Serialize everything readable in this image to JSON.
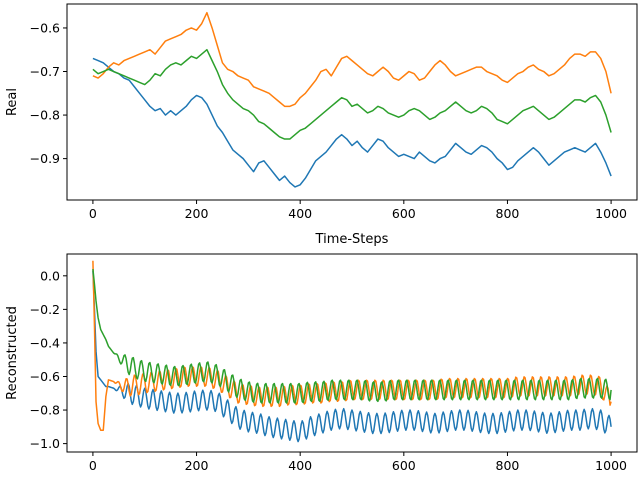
{
  "chart_data": [
    {
      "type": "line",
      "title": "",
      "xlabel": "Time-Steps",
      "ylabel": "Real",
      "xlim": [
        -50,
        1050
      ],
      "ylim": [
        -0.995,
        -0.545
      ],
      "xticks": [
        0,
        200,
        400,
        600,
        800,
        1000
      ],
      "xtick_labels": [
        "0",
        "200",
        "400",
        "600",
        "800",
        "1000"
      ],
      "yticks": [
        -0.9,
        -0.8,
        -0.7,
        -0.6
      ],
      "ytick_labels": [
        "−0.9",
        "−0.8",
        "−0.7",
        "−0.6"
      ],
      "grid": false,
      "series": [
        {
          "color": "#1f77b4",
          "x": [
            0,
            10,
            20,
            30,
            40,
            50,
            60,
            70,
            80,
            90,
            100,
            110,
            120,
            130,
            140,
            150,
            160,
            170,
            180,
            190,
            200,
            210,
            220,
            230,
            240,
            250,
            260,
            270,
            280,
            290,
            300,
            310,
            320,
            330,
            340,
            350,
            360,
            370,
            380,
            390,
            400,
            410,
            420,
            430,
            440,
            450,
            460,
            470,
            480,
            490,
            500,
            510,
            520,
            530,
            540,
            550,
            560,
            570,
            580,
            590,
            600,
            610,
            620,
            630,
            640,
            650,
            660,
            670,
            680,
            690,
            700,
            710,
            720,
            730,
            740,
            750,
            760,
            770,
            780,
            790,
            800,
            810,
            820,
            830,
            840,
            850,
            860,
            870,
            880,
            890,
            900,
            910,
            920,
            930,
            940,
            950,
            960,
            970,
            980,
            990,
            1000
          ],
          "y": [
            -0.67,
            -0.675,
            -0.68,
            -0.69,
            -0.7,
            -0.705,
            -0.715,
            -0.72,
            -0.735,
            -0.75,
            -0.765,
            -0.78,
            -0.79,
            -0.785,
            -0.8,
            -0.79,
            -0.8,
            -0.79,
            -0.78,
            -0.765,
            -0.755,
            -0.76,
            -0.775,
            -0.8,
            -0.825,
            -0.84,
            -0.86,
            -0.88,
            -0.89,
            -0.9,
            -0.915,
            -0.93,
            -0.91,
            -0.905,
            -0.92,
            -0.935,
            -0.95,
            -0.94,
            -0.955,
            -0.965,
            -0.96,
            -0.945,
            -0.925,
            -0.905,
            -0.895,
            -0.885,
            -0.87,
            -0.855,
            -0.845,
            -0.855,
            -0.87,
            -0.86,
            -0.875,
            -0.885,
            -0.87,
            -0.855,
            -0.86,
            -0.875,
            -0.885,
            -0.895,
            -0.89,
            -0.895,
            -0.9,
            -0.885,
            -0.895,
            -0.905,
            -0.91,
            -0.9,
            -0.895,
            -0.88,
            -0.865,
            -0.875,
            -0.885,
            -0.89,
            -0.88,
            -0.87,
            -0.875,
            -0.885,
            -0.9,
            -0.91,
            -0.925,
            -0.92,
            -0.905,
            -0.895,
            -0.885,
            -0.875,
            -0.885,
            -0.9,
            -0.915,
            -0.905,
            -0.895,
            -0.885,
            -0.88,
            -0.875,
            -0.88,
            -0.885,
            -0.875,
            -0.865,
            -0.885,
            -0.91,
            -0.94
          ]
        },
        {
          "color": "#ff7f0e",
          "x": [
            0,
            10,
            20,
            30,
            40,
            50,
            60,
            70,
            80,
            90,
            100,
            110,
            120,
            130,
            140,
            150,
            160,
            170,
            180,
            190,
            200,
            210,
            220,
            230,
            240,
            250,
            260,
            270,
            280,
            290,
            300,
            310,
            320,
            330,
            340,
            350,
            360,
            370,
            380,
            390,
            400,
            410,
            420,
            430,
            440,
            450,
            460,
            470,
            480,
            490,
            500,
            510,
            520,
            530,
            540,
            550,
            560,
            570,
            580,
            590,
            600,
            610,
            620,
            630,
            640,
            650,
            660,
            670,
            680,
            690,
            700,
            710,
            720,
            730,
            740,
            750,
            760,
            770,
            780,
            790,
            800,
            810,
            820,
            830,
            840,
            850,
            860,
            870,
            880,
            890,
            900,
            910,
            920,
            930,
            940,
            950,
            960,
            970,
            980,
            990,
            1000
          ],
          "y": [
            -0.71,
            -0.715,
            -0.705,
            -0.69,
            -0.68,
            -0.685,
            -0.675,
            -0.67,
            -0.665,
            -0.66,
            -0.655,
            -0.65,
            -0.66,
            -0.645,
            -0.63,
            -0.625,
            -0.62,
            -0.615,
            -0.605,
            -0.6,
            -0.605,
            -0.59,
            -0.565,
            -0.6,
            -0.64,
            -0.68,
            -0.695,
            -0.7,
            -0.71,
            -0.715,
            -0.72,
            -0.735,
            -0.74,
            -0.745,
            -0.75,
            -0.76,
            -0.77,
            -0.78,
            -0.78,
            -0.775,
            -0.76,
            -0.75,
            -0.735,
            -0.72,
            -0.7,
            -0.695,
            -0.71,
            -0.69,
            -0.67,
            -0.665,
            -0.675,
            -0.685,
            -0.695,
            -0.705,
            -0.71,
            -0.7,
            -0.69,
            -0.7,
            -0.715,
            -0.72,
            -0.71,
            -0.7,
            -0.705,
            -0.72,
            -0.715,
            -0.7,
            -0.685,
            -0.675,
            -0.685,
            -0.7,
            -0.71,
            -0.705,
            -0.7,
            -0.695,
            -0.69,
            -0.69,
            -0.7,
            -0.705,
            -0.71,
            -0.72,
            -0.725,
            -0.715,
            -0.705,
            -0.7,
            -0.69,
            -0.685,
            -0.695,
            -0.7,
            -0.71,
            -0.705,
            -0.695,
            -0.685,
            -0.67,
            -0.66,
            -0.66,
            -0.665,
            -0.655,
            -0.655,
            -0.67,
            -0.7,
            -0.75
          ]
        },
        {
          "color": "#2ca02c",
          "x": [
            0,
            10,
            20,
            30,
            40,
            50,
            60,
            70,
            80,
            90,
            100,
            110,
            120,
            130,
            140,
            150,
            160,
            170,
            180,
            190,
            200,
            210,
            220,
            230,
            240,
            250,
            260,
            270,
            280,
            290,
            300,
            310,
            320,
            330,
            340,
            350,
            360,
            370,
            380,
            390,
            400,
            410,
            420,
            430,
            440,
            450,
            460,
            470,
            480,
            490,
            500,
            510,
            520,
            530,
            540,
            550,
            560,
            570,
            580,
            590,
            600,
            610,
            620,
            630,
            640,
            650,
            660,
            670,
            680,
            690,
            700,
            710,
            720,
            730,
            740,
            750,
            760,
            770,
            780,
            790,
            800,
            810,
            820,
            830,
            840,
            850,
            860,
            870,
            880,
            890,
            900,
            910,
            920,
            930,
            940,
            950,
            960,
            970,
            980,
            990,
            1000
          ],
          "y": [
            -0.695,
            -0.705,
            -0.7,
            -0.695,
            -0.7,
            -0.705,
            -0.71,
            -0.715,
            -0.72,
            -0.725,
            -0.73,
            -0.72,
            -0.705,
            -0.71,
            -0.695,
            -0.685,
            -0.68,
            -0.685,
            -0.675,
            -0.665,
            -0.67,
            -0.66,
            -0.65,
            -0.675,
            -0.7,
            -0.73,
            -0.75,
            -0.765,
            -0.775,
            -0.785,
            -0.79,
            -0.8,
            -0.815,
            -0.82,
            -0.83,
            -0.84,
            -0.85,
            -0.855,
            -0.855,
            -0.845,
            -0.835,
            -0.83,
            -0.82,
            -0.81,
            -0.8,
            -0.79,
            -0.78,
            -0.77,
            -0.76,
            -0.765,
            -0.78,
            -0.775,
            -0.785,
            -0.795,
            -0.79,
            -0.78,
            -0.785,
            -0.795,
            -0.8,
            -0.805,
            -0.8,
            -0.79,
            -0.785,
            -0.79,
            -0.8,
            -0.81,
            -0.805,
            -0.795,
            -0.79,
            -0.78,
            -0.77,
            -0.78,
            -0.79,
            -0.795,
            -0.79,
            -0.78,
            -0.785,
            -0.795,
            -0.81,
            -0.815,
            -0.82,
            -0.81,
            -0.8,
            -0.79,
            -0.785,
            -0.78,
            -0.79,
            -0.8,
            -0.81,
            -0.805,
            -0.795,
            -0.785,
            -0.775,
            -0.765,
            -0.765,
            -0.77,
            -0.76,
            -0.755,
            -0.77,
            -0.8,
            -0.84
          ]
        }
      ]
    },
    {
      "type": "line",
      "title": "",
      "xlabel": "",
      "ylabel": "Reconstructed",
      "xlim": [
        -50,
        1050
      ],
      "ylim": [
        -1.05,
        0.13
      ],
      "xticks": [
        0,
        200,
        400,
        600,
        800,
        1000
      ],
      "xtick_labels": [
        "0",
        "200",
        "400",
        "600",
        "800",
        "1000"
      ],
      "yticks": [
        -1.0,
        -0.8,
        -0.6,
        -0.4,
        -0.2,
        0.0
      ],
      "ytick_labels": [
        "−1.0",
        "−0.8",
        "−0.6",
        "−0.4",
        "−0.2",
        "0.0"
      ],
      "grid": false,
      "oscillation": {
        "period": 16,
        "amplitude": 0.06,
        "start": 40
      },
      "series": [
        {
          "color": "#1f77b4",
          "x": [
            0,
            3,
            6,
            10,
            15,
            20,
            25,
            30,
            40,
            50,
            60,
            70,
            80,
            90,
            100,
            120,
            140,
            160,
            180,
            200,
            220,
            240,
            260,
            280,
            300,
            320,
            340,
            360,
            380,
            400,
            420,
            440,
            460,
            480,
            500,
            520,
            540,
            560,
            580,
            600,
            620,
            640,
            660,
            680,
            700,
            720,
            740,
            760,
            780,
            800,
            820,
            840,
            860,
            880,
            900,
            920,
            940,
            960,
            980,
            1000
          ],
          "y": [
            0.03,
            -0.2,
            -0.45,
            -0.6,
            -0.62,
            -0.64,
            -0.66,
            -0.66,
            -0.67,
            -0.68,
            -0.69,
            -0.7,
            -0.71,
            -0.72,
            -0.73,
            -0.74,
            -0.75,
            -0.76,
            -0.755,
            -0.745,
            -0.74,
            -0.75,
            -0.8,
            -0.85,
            -0.87,
            -0.88,
            -0.9,
            -0.91,
            -0.92,
            -0.93,
            -0.9,
            -0.88,
            -0.86,
            -0.85,
            -0.86,
            -0.87,
            -0.88,
            -0.88,
            -0.87,
            -0.86,
            -0.86,
            -0.87,
            -0.88,
            -0.87,
            -0.86,
            -0.86,
            -0.87,
            -0.88,
            -0.88,
            -0.87,
            -0.86,
            -0.86,
            -0.87,
            -0.88,
            -0.87,
            -0.86,
            -0.86,
            -0.85,
            -0.86,
            -0.9
          ]
        },
        {
          "color": "#ff7f0e",
          "x": [
            0,
            3,
            6,
            10,
            15,
            20,
            25,
            30,
            40,
            50,
            60,
            70,
            80,
            90,
            100,
            120,
            140,
            160,
            180,
            200,
            220,
            240,
            260,
            280,
            300,
            320,
            340,
            360,
            380,
            400,
            420,
            440,
            460,
            480,
            500,
            520,
            540,
            560,
            580,
            600,
            620,
            640,
            660,
            680,
            700,
            720,
            740,
            760,
            780,
            800,
            820,
            840,
            860,
            880,
            900,
            920,
            940,
            960,
            980,
            1000
          ],
          "y": [
            0.09,
            -0.3,
            -0.75,
            -0.88,
            -0.92,
            -0.92,
            -0.72,
            -0.62,
            -0.63,
            -0.65,
            -0.66,
            -0.66,
            -0.65,
            -0.65,
            -0.64,
            -0.63,
            -0.62,
            -0.61,
            -0.6,
            -0.6,
            -0.6,
            -0.62,
            -0.66,
            -0.7,
            -0.71,
            -0.72,
            -0.72,
            -0.72,
            -0.71,
            -0.71,
            -0.7,
            -0.7,
            -0.69,
            -0.69,
            -0.68,
            -0.68,
            -0.68,
            -0.68,
            -0.68,
            -0.68,
            -0.68,
            -0.68,
            -0.68,
            -0.67,
            -0.67,
            -0.67,
            -0.67,
            -0.67,
            -0.67,
            -0.67,
            -0.66,
            -0.66,
            -0.66,
            -0.66,
            -0.66,
            -0.66,
            -0.65,
            -0.65,
            -0.66,
            -0.75
          ]
        },
        {
          "color": "#2ca02c",
          "x": [
            0,
            3,
            6,
            10,
            15,
            20,
            25,
            30,
            40,
            50,
            60,
            70,
            80,
            90,
            100,
            120,
            140,
            160,
            180,
            200,
            220,
            240,
            260,
            280,
            300,
            320,
            340,
            360,
            380,
            400,
            420,
            440,
            460,
            480,
            500,
            520,
            540,
            560,
            580,
            600,
            620,
            640,
            660,
            680,
            700,
            720,
            740,
            760,
            780,
            800,
            820,
            840,
            860,
            880,
            900,
            920,
            940,
            960,
            980,
            1000
          ],
          "y": [
            0.04,
            -0.05,
            -0.15,
            -0.25,
            -0.32,
            -0.35,
            -0.38,
            -0.42,
            -0.46,
            -0.49,
            -0.51,
            -0.53,
            -0.55,
            -0.56,
            -0.57,
            -0.58,
            -0.59,
            -0.6,
            -0.59,
            -0.58,
            -0.57,
            -0.59,
            -0.63,
            -0.67,
            -0.69,
            -0.7,
            -0.7,
            -0.7,
            -0.7,
            -0.7,
            -0.69,
            -0.69,
            -0.68,
            -0.68,
            -0.68,
            -0.68,
            -0.69,
            -0.69,
            -0.68,
            -0.68,
            -0.68,
            -0.68,
            -0.68,
            -0.68,
            -0.68,
            -0.68,
            -0.68,
            -0.68,
            -0.68,
            -0.68,
            -0.68,
            -0.68,
            -0.68,
            -0.68,
            -0.68,
            -0.68,
            -0.67,
            -0.67,
            -0.67,
            -0.68
          ]
        }
      ]
    }
  ]
}
